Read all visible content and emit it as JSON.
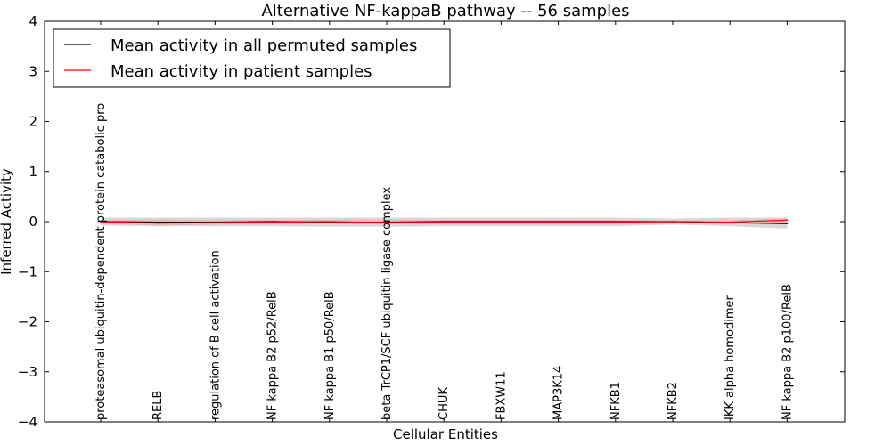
{
  "chart_data": {
    "type": "line",
    "title": "Alternative NF-kappaB pathway -- 56 samples",
    "xlabel": "Cellular Entities",
    "ylabel": "Inferred Activity",
    "ylim": [
      -4,
      4
    ],
    "yticks": [
      -4,
      -3,
      -2,
      -1,
      0,
      1,
      2,
      3,
      4
    ],
    "ytick_labels": [
      "−4",
      "−3",
      "−2",
      "−1",
      "0",
      "1",
      "2",
      "3",
      "4"
    ],
    "grid": false,
    "legend_position": "top-left",
    "categories": [
      "proteasomal ubiquitin-dependent protein catabolic pro",
      "RELB",
      "regulation of B cell activation",
      "NF kappa B2 p52/RelB",
      "NF kappa B1 p50/RelB",
      "beta TrCP1/SCF ubiquitin ligase complex",
      "CHUK",
      "FBXW11",
      "MAP3K14",
      "NFKB1",
      "NFKB2",
      "IKK alpha homodimer",
      "NF kappa B2 p100/RelB"
    ],
    "series": [
      {
        "name": "Mean activity in all permuted samples",
        "color": "#000000",
        "band_color": "#c8c8c8",
        "values": [
          0.0,
          -0.01,
          -0.01,
          0.0,
          -0.01,
          -0.01,
          0.0,
          0.0,
          0.0,
          0.0,
          0.0,
          -0.02,
          -0.04
        ],
        "band_upper": [
          0.08,
          0.08,
          0.08,
          0.08,
          0.08,
          0.08,
          0.08,
          0.08,
          0.08,
          0.08,
          0.06,
          0.08,
          0.08
        ],
        "band_lower": [
          -0.08,
          -0.09,
          -0.09,
          -0.09,
          -0.1,
          -0.1,
          -0.09,
          -0.09,
          -0.09,
          -0.09,
          -0.06,
          -0.09,
          -0.14
        ]
      },
      {
        "name": "Mean activity in patient samples",
        "color": "#ff0000",
        "band_color": "#f2a0a0",
        "values": [
          0.0,
          -0.03,
          -0.02,
          -0.01,
          0.0,
          -0.02,
          -0.01,
          -0.01,
          -0.01,
          -0.01,
          0.0,
          -0.01,
          0.03
        ],
        "band_upper": [
          0.03,
          0.04,
          0.03,
          0.03,
          0.04,
          0.04,
          0.03,
          0.03,
          0.03,
          0.03,
          0.02,
          0.03,
          0.07
        ],
        "band_lower": [
          -0.03,
          -0.08,
          -0.06,
          -0.04,
          -0.03,
          -0.05,
          -0.04,
          -0.04,
          -0.04,
          -0.04,
          -0.02,
          -0.04,
          -0.02
        ]
      }
    ]
  }
}
